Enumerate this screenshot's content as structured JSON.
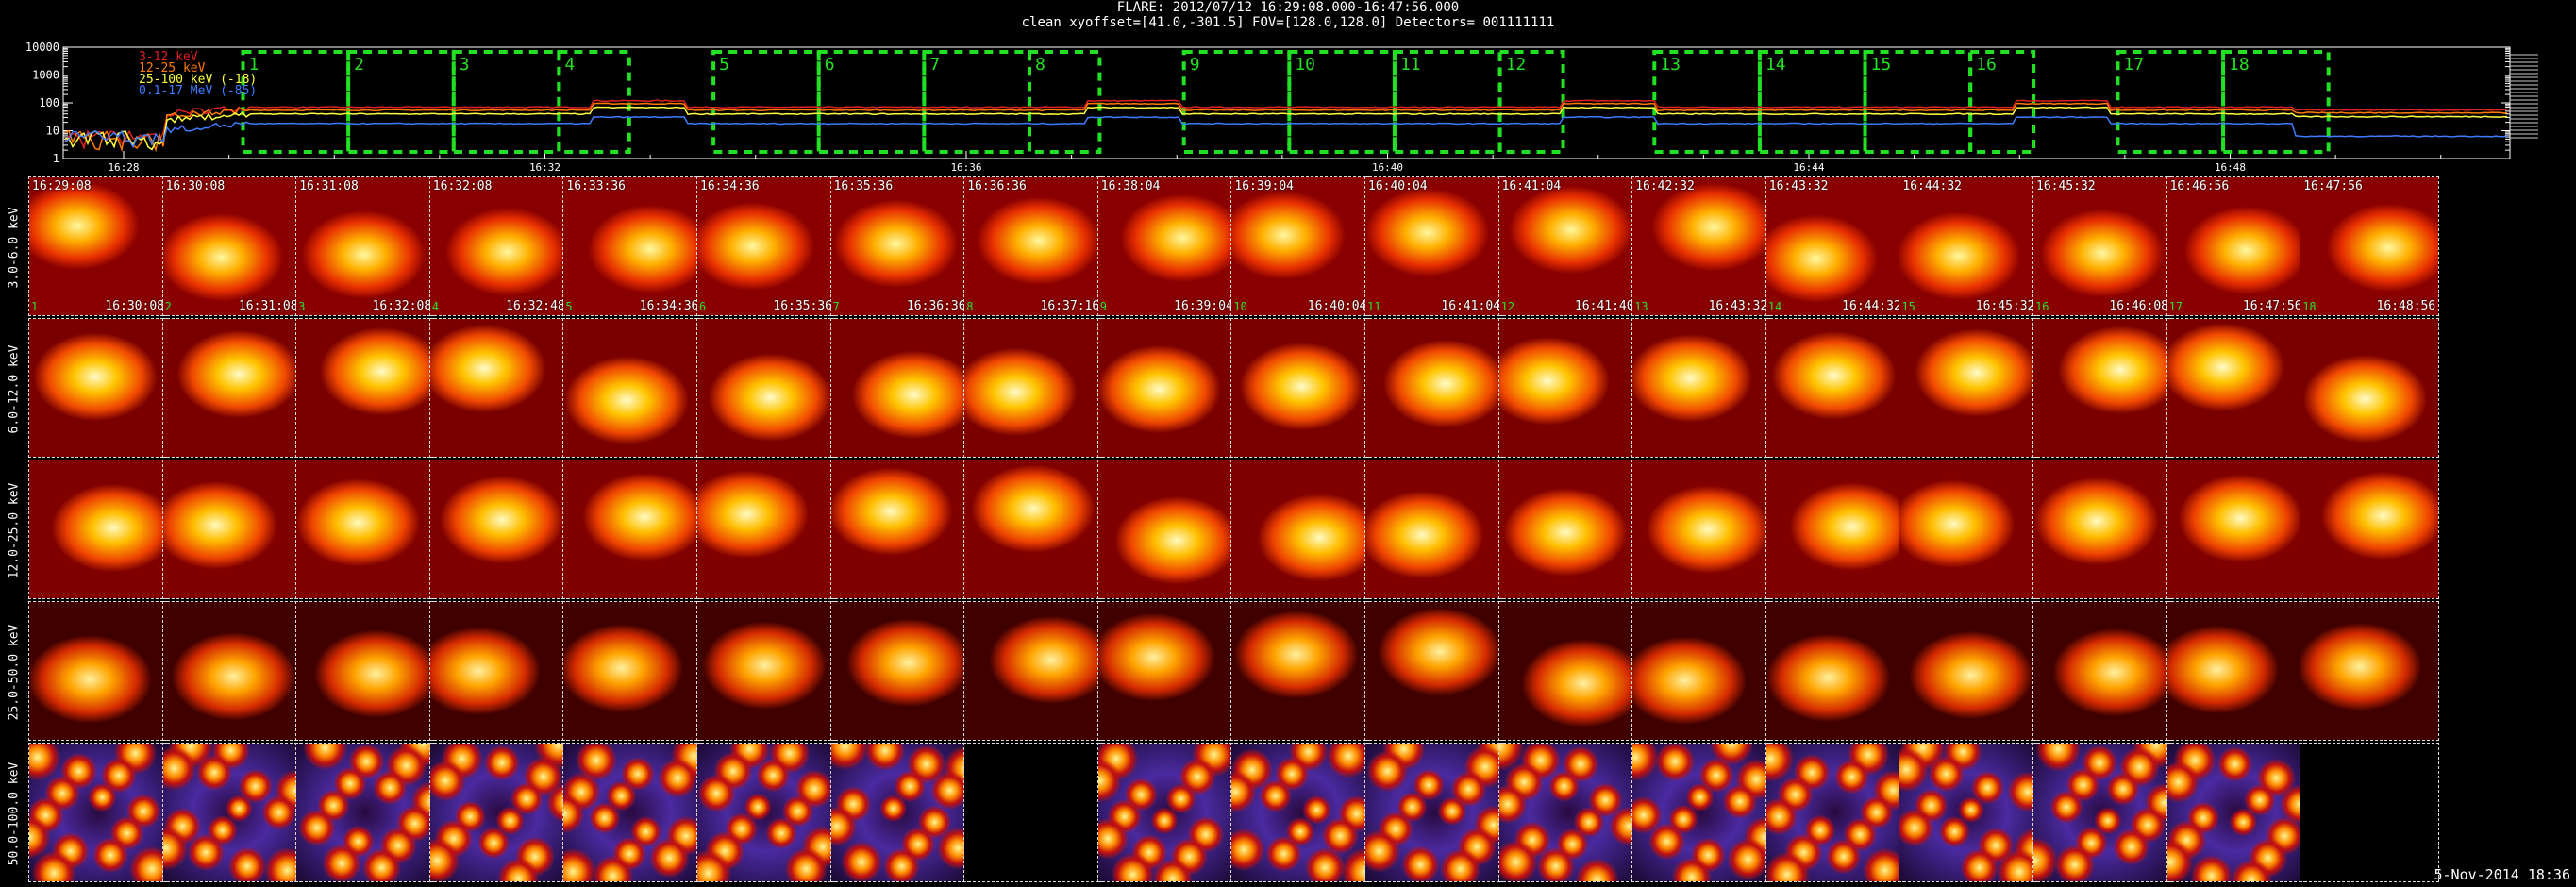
{
  "header": {
    "line1": "FLARE: 2012/07/12 16:29:08.000-16:47:56.000",
    "line2": "clean    xyoffset=[41.0,-301.5]   FOV=[128.0,128.0]   Detectors= 001111111"
  },
  "chart_data": {
    "type": "line",
    "title": "FLARE: 2012/07/12 16:29:08.000-16:47:56.000",
    "yscale": "log",
    "ylim": [
      1,
      10000
    ],
    "y_tick_labels": [
      "1",
      "10",
      "100",
      "1000",
      "10000"
    ],
    "x_tick_labels": [
      "16:28",
      "16:32",
      "16:36",
      "16:40",
      "16:44",
      "16:48"
    ],
    "series": [
      {
        "name": "3-12 keV",
        "color": "#e02020"
      },
      {
        "name": "12-25 keV",
        "color": "#ff7a00"
      },
      {
        "name": "25-100 keV (-18)",
        "color": "#ffff40"
      },
      {
        "name": "0.1-17 MeV (-85)",
        "color": "#3d7bff"
      }
    ],
    "interval_labels": [
      "1",
      "2",
      "3",
      "4",
      "5",
      "6",
      "7",
      "8",
      "9",
      "10",
      "11",
      "12",
      "13",
      "14",
      "15",
      "16",
      "17",
      "18"
    ]
  },
  "rows": [
    {
      "label": "3.0-6.0 keV"
    },
    {
      "label": "6.0-12.0 keV"
    },
    {
      "label": "12.0-25.0 keV"
    },
    {
      "label": "25.0-50.0 keV"
    },
    {
      "label": "50.0-100.0 keV"
    }
  ],
  "columns": [
    {
      "start": "16:29:08",
      "end": "16:30:08",
      "idx": "1"
    },
    {
      "start": "16:30:08",
      "end": "16:31:08",
      "idx": "2"
    },
    {
      "start": "16:31:08",
      "end": "16:32:08",
      "idx": "3"
    },
    {
      "start": "16:32:08",
      "end": "16:32:48",
      "idx": "4"
    },
    {
      "start": "16:33:36",
      "end": "16:34:36",
      "idx": "5"
    },
    {
      "start": "16:34:36",
      "end": "16:35:36",
      "idx": "6"
    },
    {
      "start": "16:35:36",
      "end": "16:36:36",
      "idx": "7"
    },
    {
      "start": "16:36:36",
      "end": "16:37:16",
      "idx": "8"
    },
    {
      "start": "16:38:04",
      "end": "16:39:04",
      "idx": "9"
    },
    {
      "start": "16:39:04",
      "end": "16:40:04",
      "idx": "10"
    },
    {
      "start": "16:40:04",
      "end": "16:41:04",
      "idx": "11"
    },
    {
      "start": "16:41:04",
      "end": "16:41:40",
      "idx": "12"
    },
    {
      "start": "16:42:32",
      "end": "16:43:32",
      "idx": "13"
    },
    {
      "start": "16:43:32",
      "end": "16:44:32",
      "idx": "14"
    },
    {
      "start": "16:44:32",
      "end": "16:45:32",
      "idx": "15"
    },
    {
      "start": "16:45:32",
      "end": "16:46:08",
      "idx": "16"
    },
    {
      "start": "16:46:56",
      "end": "16:47:56",
      "idx": "17"
    },
    {
      "start": "16:47:56",
      "end": "16:48:56",
      "idx": "18"
    }
  ],
  "blank_cells": [
    [
      4,
      7
    ],
    [
      4,
      17
    ]
  ],
  "footer": {
    "date": "5-Nov-2014 18:36"
  }
}
